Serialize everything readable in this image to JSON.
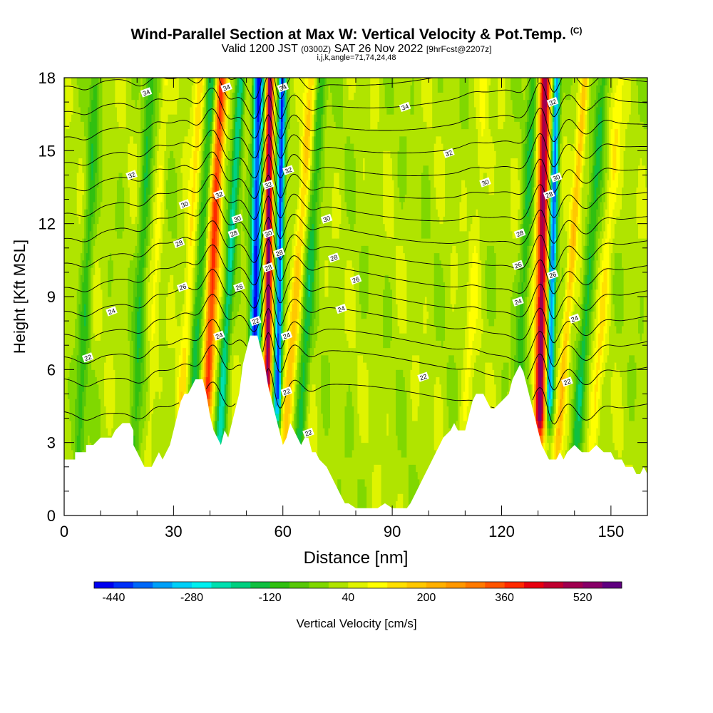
{
  "header": {
    "title": "Wind-Parallel Section at Max W: Vertical Velocity & Pot.Temp.",
    "copyright": "(C)",
    "valid_a": "Valid 1200 JST",
    "valid_utc": "(0300Z)",
    "valid_b": "SAT 26 Nov 2022",
    "forecast": "[9hrFcst@2207z]",
    "indices": "i,j,k,angle=71,74,24,48"
  },
  "chart_data": {
    "type": "heatmap",
    "xlabel": "Distance [nm]",
    "ylabel": "Height [Kft MSL]",
    "xlim": [
      0,
      160
    ],
    "ylim": [
      0,
      18
    ],
    "xticks": [
      "0",
      "30",
      "60",
      "90",
      "120",
      "150"
    ],
    "yticks": [
      "0",
      "3",
      "6",
      "9",
      "12",
      "15",
      "18"
    ],
    "colorbar": {
      "label": "Vertical Velocity [cm/s]",
      "ticks": [
        "-440",
        "-280",
        "-120",
        "40",
        "200",
        "360",
        "520"
      ],
      "min": -480,
      "step": 40,
      "colors": [
        "#0000f0",
        "#0030f8",
        "#0068f8",
        "#00a0f8",
        "#00d0f8",
        "#00f0f0",
        "#00e0b0",
        "#00d080",
        "#10c040",
        "#30c010",
        "#58c808",
        "#80d800",
        "#b0e400",
        "#e0f400",
        "#ffff00",
        "#ffe000",
        "#ffc800",
        "#ffb000",
        "#ff9800",
        "#ff7a00",
        "#ff5500",
        "#ff2a00",
        "#e80010",
        "#c00030",
        "#a00050",
        "#880068",
        "#600080"
      ]
    },
    "terrain": [
      [
        0,
        2.3
      ],
      [
        3,
        2.3
      ],
      [
        3,
        2.6
      ],
      [
        6,
        2.6
      ],
      [
        6,
        2.9
      ],
      [
        8,
        2.9
      ],
      [
        10,
        3.2
      ],
      [
        13,
        3.2
      ],
      [
        14,
        3.5
      ],
      [
        16,
        3.8
      ],
      [
        18,
        3.8
      ],
      [
        19,
        3.5
      ],
      [
        19,
        2.9
      ],
      [
        20,
        2.6
      ],
      [
        21,
        2.3
      ],
      [
        22,
        2.0
      ],
      [
        24,
        2.0
      ],
      [
        25,
        2.3
      ],
      [
        26,
        2.6
      ],
      [
        27,
        2.3
      ],
      [
        28,
        2.6
      ],
      [
        29,
        2.9
      ],
      [
        30,
        3.5
      ],
      [
        31,
        4.1
      ],
      [
        32,
        4.7
      ],
      [
        33,
        5.0
      ],
      [
        34,
        5.0
      ],
      [
        35,
        5.3
      ],
      [
        36,
        5.6
      ],
      [
        38,
        5.6
      ],
      [
        39,
        5.0
      ],
      [
        40,
        4.1
      ],
      [
        41,
        3.5
      ],
      [
        42,
        3.2
      ],
      [
        43,
        2.9
      ],
      [
        44,
        3.5
      ],
      [
        45,
        3.2
      ],
      [
        46,
        3.8
      ],
      [
        47,
        4.4
      ],
      [
        48,
        5.0
      ],
      [
        49,
        6.2
      ],
      [
        50,
        6.8
      ],
      [
        51,
        7.4
      ],
      [
        53,
        7.4
      ],
      [
        54,
        6.8
      ],
      [
        55,
        6.2
      ],
      [
        56,
        5.3
      ],
      [
        57,
        4.7
      ],
      [
        58,
        4.1
      ],
      [
        59,
        3.5
      ],
      [
        60,
        2.9
      ],
      [
        61,
        3.2
      ],
      [
        62,
        3.8
      ],
      [
        63,
        3.5
      ],
      [
        64,
        3.2
      ],
      [
        65,
        2.9
      ],
      [
        66,
        3.2
      ],
      [
        67,
        3.2
      ],
      [
        68,
        2.6
      ],
      [
        69,
        2.6
      ],
      [
        70,
        2.3
      ],
      [
        72,
        2.0
      ],
      [
        73,
        1.7
      ],
      [
        74,
        1.4
      ],
      [
        75,
        1.1
      ],
      [
        76,
        0.8
      ],
      [
        77,
        0.5
      ],
      [
        78,
        0.5
      ],
      [
        80,
        0.3
      ],
      [
        86,
        0.3
      ],
      [
        88,
        0.5
      ],
      [
        90,
        0.3
      ],
      [
        94,
        0.3
      ],
      [
        95,
        0.5
      ],
      [
        96,
        0.8
      ],
      [
        97,
        1.1
      ],
      [
        98,
        1.4
      ],
      [
        99,
        1.7
      ],
      [
        100,
        2.0
      ],
      [
        101,
        2.3
      ],
      [
        102,
        2.6
      ],
      [
        103,
        2.9
      ],
      [
        104,
        3.2
      ],
      [
        106,
        3.5
      ],
      [
        107,
        3.8
      ],
      [
        108,
        3.5
      ],
      [
        110,
        3.5
      ],
      [
        111,
        4.1
      ],
      [
        112,
        4.7
      ],
      [
        113,
        5.0
      ],
      [
        115,
        5.0
      ],
      [
        116,
        4.7
      ],
      [
        117,
        4.4
      ],
      [
        118,
        4.4
      ],
      [
        120,
        4.7
      ],
      [
        122,
        5.0
      ],
      [
        123,
        5.6
      ],
      [
        124,
        5.9
      ],
      [
        125,
        6.2
      ],
      [
        126,
        5.9
      ],
      [
        127,
        5.3
      ],
      [
        128,
        4.7
      ],
      [
        129,
        4.1
      ],
      [
        130,
        3.5
      ],
      [
        131,
        2.9
      ],
      [
        132,
        2.6
      ],
      [
        133,
        2.3
      ],
      [
        135,
        2.3
      ],
      [
        136,
        2.6
      ],
      [
        137,
        2.3
      ],
      [
        138,
        2.6
      ],
      [
        140,
        2.9
      ],
      [
        142,
        2.6
      ],
      [
        144,
        2.6
      ],
      [
        146,
        2.9
      ],
      [
        148,
        2.6
      ],
      [
        150,
        2.6
      ],
      [
        151,
        2.3
      ],
      [
        153,
        2.3
      ],
      [
        154,
        2.0
      ],
      [
        156,
        2.0
      ],
      [
        157,
        1.7
      ],
      [
        158,
        1.7
      ],
      [
        159,
        2.0
      ],
      [
        160,
        1.7
      ]
    ],
    "updrafts": [
      {
        "x": 40.5,
        "slope": 0.3,
        "width": 1.5,
        "amp": 360,
        "ymin": 5.0
      },
      {
        "x": 56.0,
        "slope": 0.05,
        "width": 1.0,
        "amp": 540,
        "ymin": 5.5
      },
      {
        "x": 131.0,
        "slope": 0.1,
        "width": 1.5,
        "amp": 500,
        "ymin": 4.0
      },
      {
        "x": 63.5,
        "slope": 0.5,
        "width": 1.5,
        "amp": 150,
        "ymin": 3.0
      },
      {
        "x": 34.0,
        "slope": 0.4,
        "width": 1.5,
        "amp": 110,
        "ymin": 4.0
      },
      {
        "x": 138.5,
        "slope": 0.5,
        "width": 1.2,
        "amp": 170,
        "ymin": 3.0
      },
      {
        "x": 25.0,
        "slope": 0.3,
        "width": 1.2,
        "amp": 60,
        "ymin": 2.5
      },
      {
        "x": 112.0,
        "slope": 0.4,
        "width": 1.5,
        "amp": 60,
        "ymin": 4.0
      },
      {
        "x": 148.0,
        "slope": 0.5,
        "width": 1.5,
        "amp": 90,
        "ymin": 2.5
      }
    ],
    "downdrafts": [
      {
        "x": 52.5,
        "slope": 0.1,
        "width": 1.4,
        "amp": -460,
        "ymin": 6.5
      },
      {
        "x": 59.0,
        "slope": 0.1,
        "width": 1.0,
        "amp": -440,
        "ymin": 5.0
      },
      {
        "x": 133.8,
        "slope": 0.15,
        "width": 1.0,
        "amp": -400,
        "ymin": 5.0
      },
      {
        "x": 45.0,
        "slope": 0.4,
        "width": 1.3,
        "amp": -220,
        "ymin": 3.0
      },
      {
        "x": 37.0,
        "slope": 0.4,
        "width": 1.5,
        "amp": -150,
        "ymin": 4.0
      },
      {
        "x": 21.0,
        "slope": 0.3,
        "width": 1.5,
        "amp": -130,
        "ymin": 2.5
      },
      {
        "x": 67.0,
        "slope": 0.4,
        "width": 1.5,
        "amp": -150,
        "ymin": 3.0
      },
      {
        "x": 143.5,
        "slope": 0.5,
        "width": 1.5,
        "amp": -150,
        "ymin": 3.0
      },
      {
        "x": 6.0,
        "slope": 0.3,
        "width": 1.5,
        "amp": -120,
        "ymin": 2.5
      },
      {
        "x": 126.0,
        "slope": 0.3,
        "width": 1.5,
        "amp": -130,
        "ymin": 3.5
      }
    ],
    "contour_levels": [
      21,
      22,
      23,
      24,
      25,
      26,
      27,
      28,
      29,
      30,
      31,
      32,
      33,
      34,
      35
    ],
    "contour_labels": [
      {
        "text": "34",
        "x": 22.5,
        "y": 17.4
      },
      {
        "text": "34",
        "x": 44.5,
        "y": 17.6
      },
      {
        "text": "34",
        "x": 60.0,
        "y": 17.6
      },
      {
        "text": "34",
        "x": 93.5,
        "y": 16.8
      },
      {
        "text": "32",
        "x": 18.5,
        "y": 14.0
      },
      {
        "text": "32",
        "x": 61.5,
        "y": 14.2
      },
      {
        "text": "32",
        "x": 105.5,
        "y": 14.9
      },
      {
        "text": "32",
        "x": 42.5,
        "y": 13.2
      },
      {
        "text": "32",
        "x": 56.0,
        "y": 13.6
      },
      {
        "text": "32",
        "x": 134.0,
        "y": 17.0
      },
      {
        "text": "30",
        "x": 33.0,
        "y": 12.8
      },
      {
        "text": "30",
        "x": 47.5,
        "y": 12.2
      },
      {
        "text": "30",
        "x": 56.0,
        "y": 11.6
      },
      {
        "text": "30",
        "x": 72.0,
        "y": 12.2
      },
      {
        "text": "30",
        "x": 115.5,
        "y": 13.7
      },
      {
        "text": "30",
        "x": 135.0,
        "y": 13.9
      },
      {
        "text": "28",
        "x": 31.5,
        "y": 11.2
      },
      {
        "text": "28",
        "x": 46.5,
        "y": 11.6
      },
      {
        "text": "28",
        "x": 59.0,
        "y": 10.8
      },
      {
        "text": "28",
        "x": 56.0,
        "y": 10.2
      },
      {
        "text": "28",
        "x": 74.0,
        "y": 10.6
      },
      {
        "text": "28",
        "x": 125.0,
        "y": 11.6
      },
      {
        "text": "28",
        "x": 133.0,
        "y": 13.2
      },
      {
        "text": "26",
        "x": 32.5,
        "y": 9.4
      },
      {
        "text": "26",
        "x": 48.0,
        "y": 9.4
      },
      {
        "text": "26",
        "x": 80.0,
        "y": 9.7
      },
      {
        "text": "26",
        "x": 124.5,
        "y": 10.3
      },
      {
        "text": "26",
        "x": 134.0,
        "y": 9.9
      },
      {
        "text": "24",
        "x": 13.0,
        "y": 8.4
      },
      {
        "text": "24",
        "x": 42.5,
        "y": 7.4
      },
      {
        "text": "24",
        "x": 61.0,
        "y": 7.4
      },
      {
        "text": "24",
        "x": 76.0,
        "y": 8.5
      },
      {
        "text": "24",
        "x": 124.5,
        "y": 8.8
      },
      {
        "text": "24",
        "x": 140.0,
        "y": 8.1
      },
      {
        "text": "22",
        "x": 6.5,
        "y": 6.5
      },
      {
        "text": "22",
        "x": 61.0,
        "y": 5.1
      },
      {
        "text": "22",
        "x": 98.5,
        "y": 5.7
      },
      {
        "text": "22",
        "x": 138.0,
        "y": 5.5
      },
      {
        "text": "22",
        "x": 52.5,
        "y": 8.0
      },
      {
        "text": "22",
        "x": 67.0,
        "y": 3.4
      }
    ]
  }
}
